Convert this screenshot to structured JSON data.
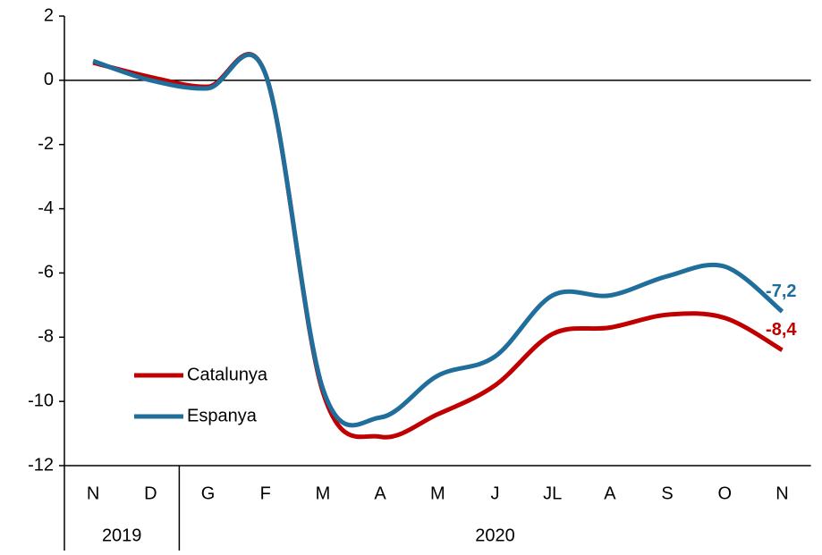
{
  "chart_data": {
    "type": "line",
    "categories": [
      "N",
      "D",
      "G",
      "F",
      "M",
      "A",
      "M",
      "J",
      "JL",
      "A",
      "S",
      "O",
      "N"
    ],
    "x_groups": [
      {
        "label": "2019",
        "start": 0,
        "end": 1
      },
      {
        "label": "2020",
        "start": 2,
        "end": 12
      }
    ],
    "series": [
      {
        "name": "Catalunya",
        "color": "#c00000",
        "values": [
          0.55,
          0.1,
          -0.2,
          0.2,
          -9.7,
          -11.1,
          -10.4,
          -9.5,
          -7.9,
          -7.7,
          -7.3,
          -7.4,
          -8.4
        ],
        "value_labels": [
          null,
          null,
          null,
          null,
          null,
          null,
          null,
          null,
          null,
          null,
          null,
          null,
          "-8,4"
        ]
      },
      {
        "name": "Espanya",
        "color": "#1f6e9c",
        "values": [
          0.6,
          0.0,
          -0.25,
          0.2,
          -9.6,
          -10.5,
          -9.2,
          -8.6,
          -6.7,
          -6.7,
          -6.1,
          -5.8,
          -7.2
        ],
        "value_labels": [
          null,
          null,
          null,
          null,
          null,
          null,
          null,
          null,
          null,
          null,
          null,
          null,
          "-7,2"
        ]
      }
    ],
    "ylim": [
      -12,
      2
    ],
    "yticks": [
      -12,
      -10,
      -8,
      -6,
      -4,
      -2,
      0,
      2
    ],
    "grid": false,
    "legend": "lower left"
  }
}
